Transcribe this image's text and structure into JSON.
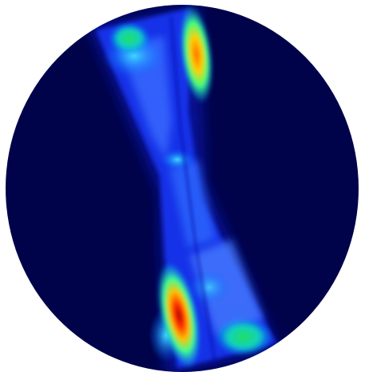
{
  "view": {
    "type": "heatmap-field-on-disc",
    "background": "#ffffff",
    "disc_color": "#00034a",
    "colormap": "jet",
    "colormap_stops": [
      "#00008f",
      "#0000ff",
      "#0080ff",
      "#00ffff",
      "#80ff80",
      "#ffff00",
      "#ff8000",
      "#ff0000",
      "#800000"
    ]
  }
}
